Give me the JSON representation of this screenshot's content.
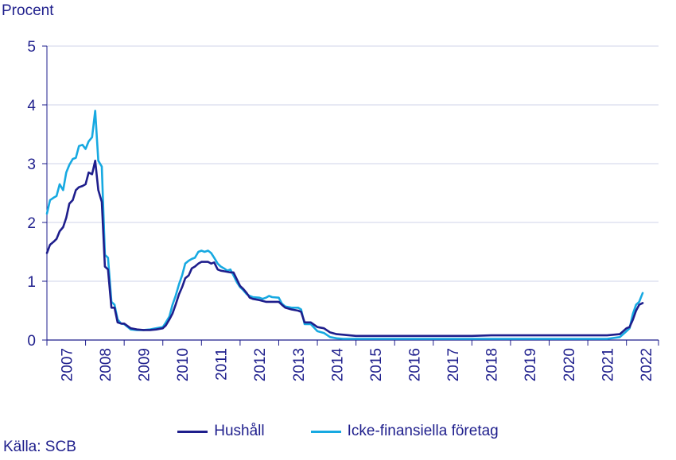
{
  "chart_data": {
    "type": "line",
    "ylabel": "Procent",
    "ylim": [
      0,
      5
    ],
    "yticks": [
      "0",
      "1",
      "2",
      "3",
      "4",
      "5"
    ],
    "xlim": [
      2007,
      2022.83
    ],
    "xticks": [
      "2007",
      "2008",
      "2009",
      "2010",
      "2011",
      "2012",
      "2013",
      "2014",
      "2015",
      "2016",
      "2017",
      "2018",
      "2019",
      "2020",
      "2021",
      "2022"
    ],
    "grid": "horizontal",
    "legend": "bottom",
    "source": "Källa: SCB",
    "series": [
      {
        "name": "Hushåll",
        "color": "#1e1e8c",
        "points": [
          [
            2007.0,
            1.48
          ],
          [
            2007.08,
            1.62
          ],
          [
            2007.17,
            1.67
          ],
          [
            2007.25,
            1.72
          ],
          [
            2007.33,
            1.85
          ],
          [
            2007.42,
            1.92
          ],
          [
            2007.5,
            2.08
          ],
          [
            2007.58,
            2.32
          ],
          [
            2007.67,
            2.38
          ],
          [
            2007.75,
            2.55
          ],
          [
            2007.83,
            2.6
          ],
          [
            2007.92,
            2.62
          ],
          [
            2008.0,
            2.65
          ],
          [
            2008.08,
            2.85
          ],
          [
            2008.17,
            2.82
          ],
          [
            2008.25,
            3.05
          ],
          [
            2008.33,
            2.55
          ],
          [
            2008.42,
            2.35
          ],
          [
            2008.5,
            1.25
          ],
          [
            2008.58,
            1.2
          ],
          [
            2008.67,
            0.55
          ],
          [
            2008.75,
            0.55
          ],
          [
            2008.83,
            0.3
          ],
          [
            2008.92,
            0.28
          ],
          [
            2009.0,
            0.28
          ],
          [
            2009.17,
            0.2
          ],
          [
            2009.33,
            0.18
          ],
          [
            2009.5,
            0.17
          ],
          [
            2009.67,
            0.17
          ],
          [
            2009.83,
            0.18
          ],
          [
            2010.0,
            0.2
          ],
          [
            2010.08,
            0.25
          ],
          [
            2010.17,
            0.35
          ],
          [
            2010.25,
            0.45
          ],
          [
            2010.33,
            0.6
          ],
          [
            2010.42,
            0.78
          ],
          [
            2010.5,
            0.9
          ],
          [
            2010.58,
            1.05
          ],
          [
            2010.67,
            1.1
          ],
          [
            2010.75,
            1.22
          ],
          [
            2010.83,
            1.25
          ],
          [
            2010.92,
            1.3
          ],
          [
            2011.0,
            1.33
          ],
          [
            2011.17,
            1.33
          ],
          [
            2011.25,
            1.3
          ],
          [
            2011.33,
            1.32
          ],
          [
            2011.42,
            1.2
          ],
          [
            2011.5,
            1.18
          ],
          [
            2011.58,
            1.17
          ],
          [
            2011.75,
            1.15
          ],
          [
            2011.83,
            1.15
          ],
          [
            2012.0,
            0.92
          ],
          [
            2012.08,
            0.87
          ],
          [
            2012.17,
            0.8
          ],
          [
            2012.25,
            0.72
          ],
          [
            2012.33,
            0.7
          ],
          [
            2012.5,
            0.68
          ],
          [
            2012.67,
            0.65
          ],
          [
            2012.83,
            0.65
          ],
          [
            2013.0,
            0.65
          ],
          [
            2013.08,
            0.6
          ],
          [
            2013.17,
            0.55
          ],
          [
            2013.33,
            0.52
          ],
          [
            2013.5,
            0.5
          ],
          [
            2013.58,
            0.48
          ],
          [
            2013.67,
            0.3
          ],
          [
            2013.83,
            0.3
          ],
          [
            2014.0,
            0.22
          ],
          [
            2014.17,
            0.2
          ],
          [
            2014.33,
            0.13
          ],
          [
            2014.5,
            0.1
          ],
          [
            2014.67,
            0.09
          ],
          [
            2014.83,
            0.08
          ],
          [
            2015.0,
            0.07
          ],
          [
            2015.5,
            0.07
          ],
          [
            2016.0,
            0.07
          ],
          [
            2016.5,
            0.07
          ],
          [
            2017.0,
            0.07
          ],
          [
            2017.5,
            0.07
          ],
          [
            2018.0,
            0.07
          ],
          [
            2018.5,
            0.08
          ],
          [
            2019.0,
            0.08
          ],
          [
            2019.5,
            0.08
          ],
          [
            2020.0,
            0.08
          ],
          [
            2020.5,
            0.08
          ],
          [
            2021.0,
            0.08
          ],
          [
            2021.5,
            0.08
          ],
          [
            2021.83,
            0.1
          ],
          [
            2022.0,
            0.2
          ],
          [
            2022.08,
            0.22
          ],
          [
            2022.17,
            0.35
          ],
          [
            2022.25,
            0.5
          ],
          [
            2022.33,
            0.6
          ],
          [
            2022.42,
            0.63
          ]
        ]
      },
      {
        "name": "Icke-finansiella företag",
        "color": "#17a9e1",
        "points": [
          [
            2007.0,
            2.15
          ],
          [
            2007.08,
            2.38
          ],
          [
            2007.17,
            2.42
          ],
          [
            2007.25,
            2.45
          ],
          [
            2007.33,
            2.65
          ],
          [
            2007.42,
            2.55
          ],
          [
            2007.5,
            2.85
          ],
          [
            2007.58,
            2.98
          ],
          [
            2007.67,
            3.08
          ],
          [
            2007.75,
            3.1
          ],
          [
            2007.83,
            3.3
          ],
          [
            2007.92,
            3.32
          ],
          [
            2008.0,
            3.25
          ],
          [
            2008.08,
            3.38
          ],
          [
            2008.17,
            3.45
          ],
          [
            2008.25,
            3.9
          ],
          [
            2008.33,
            3.05
          ],
          [
            2008.42,
            2.95
          ],
          [
            2008.5,
            1.45
          ],
          [
            2008.58,
            1.4
          ],
          [
            2008.67,
            0.65
          ],
          [
            2008.75,
            0.6
          ],
          [
            2008.83,
            0.35
          ],
          [
            2008.92,
            0.28
          ],
          [
            2009.0,
            0.27
          ],
          [
            2009.17,
            0.18
          ],
          [
            2009.33,
            0.17
          ],
          [
            2009.5,
            0.17
          ],
          [
            2009.67,
            0.18
          ],
          [
            2009.83,
            0.2
          ],
          [
            2010.0,
            0.22
          ],
          [
            2010.08,
            0.3
          ],
          [
            2010.17,
            0.4
          ],
          [
            2010.25,
            0.6
          ],
          [
            2010.33,
            0.75
          ],
          [
            2010.42,
            0.95
          ],
          [
            2010.5,
            1.1
          ],
          [
            2010.58,
            1.3
          ],
          [
            2010.67,
            1.35
          ],
          [
            2010.75,
            1.38
          ],
          [
            2010.83,
            1.4
          ],
          [
            2010.92,
            1.5
          ],
          [
            2011.0,
            1.52
          ],
          [
            2011.08,
            1.5
          ],
          [
            2011.17,
            1.52
          ],
          [
            2011.25,
            1.48
          ],
          [
            2011.33,
            1.4
          ],
          [
            2011.42,
            1.3
          ],
          [
            2011.5,
            1.25
          ],
          [
            2011.58,
            1.22
          ],
          [
            2011.67,
            1.18
          ],
          [
            2011.75,
            1.2
          ],
          [
            2011.83,
            1.1
          ],
          [
            2011.92,
            0.98
          ],
          [
            2012.0,
            0.9
          ],
          [
            2012.08,
            0.85
          ],
          [
            2012.17,
            0.78
          ],
          [
            2012.25,
            0.75
          ],
          [
            2012.33,
            0.73
          ],
          [
            2012.5,
            0.72
          ],
          [
            2012.58,
            0.7
          ],
          [
            2012.67,
            0.72
          ],
          [
            2012.75,
            0.75
          ],
          [
            2012.83,
            0.73
          ],
          [
            2013.0,
            0.72
          ],
          [
            2013.08,
            0.62
          ],
          [
            2013.17,
            0.57
          ],
          [
            2013.33,
            0.55
          ],
          [
            2013.5,
            0.55
          ],
          [
            2013.58,
            0.52
          ],
          [
            2013.67,
            0.27
          ],
          [
            2013.83,
            0.27
          ],
          [
            2014.0,
            0.15
          ],
          [
            2014.17,
            0.12
          ],
          [
            2014.33,
            0.05
          ],
          [
            2014.5,
            0.03
          ],
          [
            2014.67,
            0.02
          ],
          [
            2014.83,
            0.02
          ],
          [
            2015.0,
            0.02
          ],
          [
            2015.5,
            0.02
          ],
          [
            2016.0,
            0.02
          ],
          [
            2016.5,
            0.02
          ],
          [
            2017.0,
            0.02
          ],
          [
            2017.5,
            0.02
          ],
          [
            2018.0,
            0.02
          ],
          [
            2018.5,
            0.02
          ],
          [
            2019.0,
            0.02
          ],
          [
            2019.5,
            0.02
          ],
          [
            2020.0,
            0.02
          ],
          [
            2020.5,
            0.02
          ],
          [
            2021.0,
            0.02
          ],
          [
            2021.5,
            0.02
          ],
          [
            2021.83,
            0.05
          ],
          [
            2022.0,
            0.15
          ],
          [
            2022.08,
            0.2
          ],
          [
            2022.17,
            0.45
          ],
          [
            2022.25,
            0.6
          ],
          [
            2022.33,
            0.65
          ],
          [
            2022.42,
            0.8
          ]
        ]
      }
    ]
  }
}
